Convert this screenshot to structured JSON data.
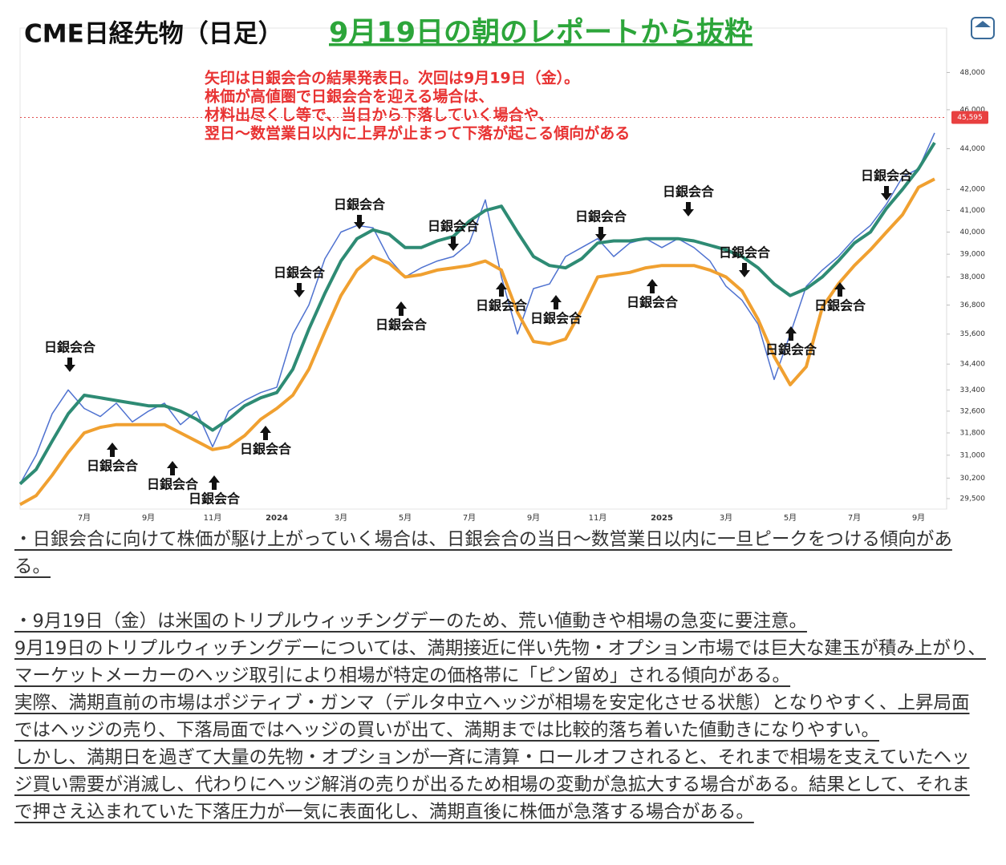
{
  "header": {
    "title": "CME日経先物（日足）",
    "subtitle": "9月19日の朝のレポートから抜粋"
  },
  "chart_data": {
    "type": "line",
    "log_scale": true,
    "grid": false,
    "note": [
      "矢印は日銀会合の結果発表日。次回は9月19日（金）。",
      "株価が高値圏で日銀会合を迎える場合は、",
      "材料出尽くし等で、当日から下落していく場合や、",
      "翌日～数営業日以内に上昇が止まって下落が起こる傾向がある"
    ],
    "categories": [
      null,
      null,
      null,
      null,
      "7月",
      null,
      null,
      null,
      "9月",
      null,
      null,
      null,
      "11月",
      null,
      null,
      null,
      "2024",
      null,
      null,
      null,
      "3月",
      null,
      null,
      null,
      "5月",
      null,
      null,
      null,
      "7月",
      null,
      null,
      null,
      "9月",
      null,
      null,
      null,
      "11月",
      null,
      null,
      null,
      "2025",
      null,
      null,
      null,
      "3月",
      null,
      null,
      null,
      "5月",
      null,
      null,
      null,
      "7月",
      null,
      null,
      null,
      "9月",
      null
    ],
    "series": [
      {
        "name": "price",
        "color": "#4f72d0",
        "values": [
          30000,
          31000,
          32500,
          33400,
          32700,
          32400,
          32900,
          32200,
          32600,
          32900,
          32100,
          32600,
          31300,
          32600,
          33000,
          33300,
          33500,
          35600,
          36800,
          38800,
          40000,
          40300,
          40200,
          38800,
          38000,
          38400,
          38700,
          38900,
          39500,
          41500,
          38000,
          35600,
          37500,
          37700,
          38900,
          39300,
          39700,
          38900,
          39500,
          39700,
          39300,
          39700,
          39300,
          38700,
          37600,
          37000,
          36000,
          33800,
          35600,
          37600,
          38300,
          38900,
          39700,
          40300,
          41300,
          42600,
          43000,
          44800
        ]
      },
      {
        "name": "ma-green",
        "color": "#2e8b74",
        "values": [
          30000,
          30500,
          31500,
          32500,
          33200,
          33100,
          33000,
          32900,
          32800,
          32800,
          32600,
          32300,
          31900,
          32300,
          32800,
          33100,
          33300,
          34200,
          35800,
          37300,
          38700,
          39700,
          40100,
          39900,
          39300,
          39300,
          39600,
          39800,
          40500,
          41000,
          41200,
          40000,
          38900,
          38500,
          38400,
          38800,
          39500,
          39600,
          39600,
          39700,
          39700,
          39700,
          39600,
          39400,
          39200,
          38900,
          38400,
          37700,
          37200,
          37500,
          38000,
          38700,
          39500,
          40000,
          41100,
          42000,
          43000,
          44300
        ]
      },
      {
        "name": "ma-orange",
        "color": "#f0a030",
        "values": [
          29300,
          29600,
          30300,
          31100,
          31800,
          32000,
          32100,
          32100,
          32100,
          32100,
          31800,
          31500,
          31200,
          31300,
          31700,
          32300,
          32700,
          33200,
          34200,
          35700,
          37200,
          38300,
          38900,
          38600,
          38000,
          38100,
          38300,
          38400,
          38500,
          38700,
          38300,
          36500,
          35300,
          35200,
          35400,
          36600,
          38000,
          38100,
          38200,
          38400,
          38500,
          38500,
          38500,
          38300,
          38000,
          37400,
          36200,
          34700,
          33600,
          34300,
          36700,
          37700,
          38500,
          39200,
          40000,
          40800,
          42100,
          42500
        ]
      }
    ],
    "ylim": [
      29150,
      50500
    ],
    "yticks": [
      {
        "value": 48000,
        "label": "48,000"
      },
      {
        "value": 46000,
        "label": "46,000"
      },
      {
        "value": 44000,
        "label": "44,000"
      },
      {
        "value": 42000,
        "label": "42,000"
      },
      {
        "value": 41000,
        "label": "41,000"
      },
      {
        "value": 40000,
        "label": "40,000"
      },
      {
        "value": 39000,
        "label": "39,000"
      },
      {
        "value": 38000,
        "label": "38,000"
      },
      {
        "value": 36800,
        "label": "36,800"
      },
      {
        "value": 35600,
        "label": "35,600"
      },
      {
        "value": 34400,
        "label": "34,400"
      },
      {
        "value": 33400,
        "label": "33,400"
      },
      {
        "value": 32600,
        "label": "32,600"
      },
      {
        "value": 31800,
        "label": "31,800"
      },
      {
        "value": 31000,
        "label": "31,000"
      },
      {
        "value": 30200,
        "label": "30,200"
      },
      {
        "value": 29500,
        "label": "29,500"
      }
    ],
    "last_price": {
      "value": 45595,
      "label": "45,595"
    },
    "annotations": [
      {
        "text": "日銀会合",
        "arrow": "down"
      },
      {
        "text": "日銀会合",
        "arrow": "up"
      },
      {
        "text": "日銀会合",
        "arrow": "up"
      },
      {
        "text": "日銀会合",
        "arrow": "up"
      },
      {
        "text": "日銀会合",
        "arrow": "up"
      },
      {
        "text": "日銀会合",
        "arrow": "down"
      },
      {
        "text": "日銀会合",
        "arrow": "down"
      },
      {
        "text": "日銀会合",
        "arrow": "up"
      },
      {
        "text": "日銀会合",
        "arrow": "down"
      },
      {
        "text": "日銀会合",
        "arrow": "up"
      },
      {
        "text": "日銀会合",
        "arrow": "up"
      },
      {
        "text": "日銀会合",
        "arrow": "down"
      },
      {
        "text": "日銀会合",
        "arrow": "up"
      },
      {
        "text": "日銀会合",
        "arrow": "down"
      },
      {
        "text": "日銀会合",
        "arrow": "down"
      },
      {
        "text": "日銀会合",
        "arrow": "up"
      },
      {
        "text": "日銀会合",
        "arrow": "up"
      },
      {
        "text": "日銀会合",
        "arrow": "down"
      }
    ]
  },
  "body": {
    "paragraphs": [
      "・日銀会合に向けて株価が駆け上がっていく場合は、日銀会合の当日～数営業日以内に一旦ピークをつける傾向がある。",
      "・9月19日（金）は米国のトリプルウィッチングデーのため、荒い値動きや相場の急変に要注意。",
      "9月19日のトリプルウィッチングデーについては、満期接近に伴い先物・オプション市場では巨大な建玉が積み上がり、マーケットメーカーのヘッジ取引により相場が特定の価格帯に「ピン留め」される傾向がある。",
      "実際、満期直前の市場はポジティブ・ガンマ（デルタ中立ヘッジが相場を安定化させる状態）となりやすく、上昇局面ではヘッジの売り、下落局面ではヘッジの買いが出て、満期までは比較的落ち着いた値動きになりやすい。",
      "しかし、満期日を過ぎて大量の先物・オプションが一斉に清算・ロールオフされると、それまで相場を支えていたヘッジ買い需要が消滅し、代わりにヘッジ解消の売りが出るため相場の変動が急拡大する場合がある。結果として、それまで押さえ込まれていた下落圧力が一気に表面化し、満期直後に株価が急落する場合がある。"
    ]
  }
}
